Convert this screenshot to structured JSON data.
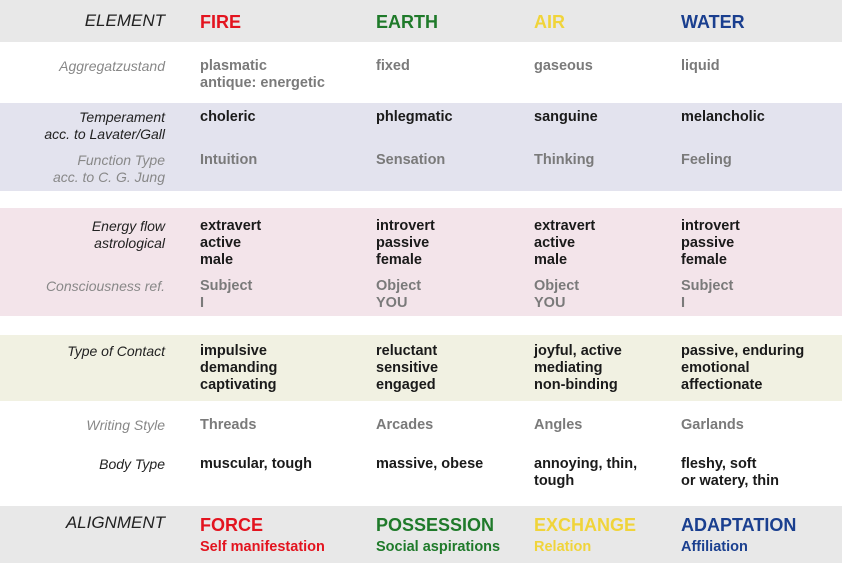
{
  "colors": {
    "fire": "#e3141f",
    "earth": "#1f7a2a",
    "air": "#f0d43a",
    "water": "#1a3f8f"
  },
  "header": {
    "label": "ELEMENT",
    "columns": [
      "FIRE",
      "EARTH",
      "AIR",
      "WATER"
    ]
  },
  "rows": [
    {
      "label": "Aggregatzustand",
      "tone": "gray",
      "values": [
        "plasmatic\nantique: energetic",
        "fixed",
        "gaseous",
        "liquid"
      ]
    },
    {
      "label": "Temperament\nacc. to Lavater/Gall",
      "tone": "dark",
      "values": [
        "choleric",
        "phlegmatic",
        "sanguine",
        "melancholic"
      ]
    },
    {
      "label": "Function Type\nacc. to C. G. Jung",
      "tone": "gray",
      "values": [
        "Intuition",
        "Sensation",
        "Thinking",
        "Feeling"
      ]
    },
    {
      "label": "Energy flow\nastrological",
      "tone": "dark",
      "values": [
        "extravert\nactive\nmale",
        "introvert\npassive\nfemale",
        "extravert\nactive\nmale",
        "introvert\npassive\nfemale"
      ]
    },
    {
      "label": "Consciousness ref.",
      "tone": "gray",
      "values": [
        "Subject\nI",
        "Object\nYOU",
        "Object\nYOU",
        "Subject\nI"
      ]
    },
    {
      "label": "Type of Contact",
      "tone": "dark",
      "values": [
        "impulsive\ndemanding\ncaptivating",
        "reluctant\nsensitive\nengaged",
        "joyful, active\nmediating\nnon-binding",
        "passive, enduring\nemotional\naffectionate"
      ]
    },
    {
      "label": "Writing Style",
      "tone": "gray",
      "values": [
        "Threads",
        "Arcades",
        "Angles",
        "Garlands"
      ]
    },
    {
      "label": "Body Type",
      "tone": "dark",
      "values": [
        "muscular, tough",
        "massive, obese",
        "annoying, thin,\ntough",
        "fleshy, soft\nor watery, thin"
      ]
    }
  ],
  "footer": {
    "label": "ALIGNMENT",
    "columns": [
      "FORCE",
      "POSSESSION",
      "EXCHANGE",
      "ADAPTATION"
    ],
    "subtitles": [
      "Self manifestation",
      "Social aspirations",
      "Relation",
      "Affiliation"
    ]
  }
}
